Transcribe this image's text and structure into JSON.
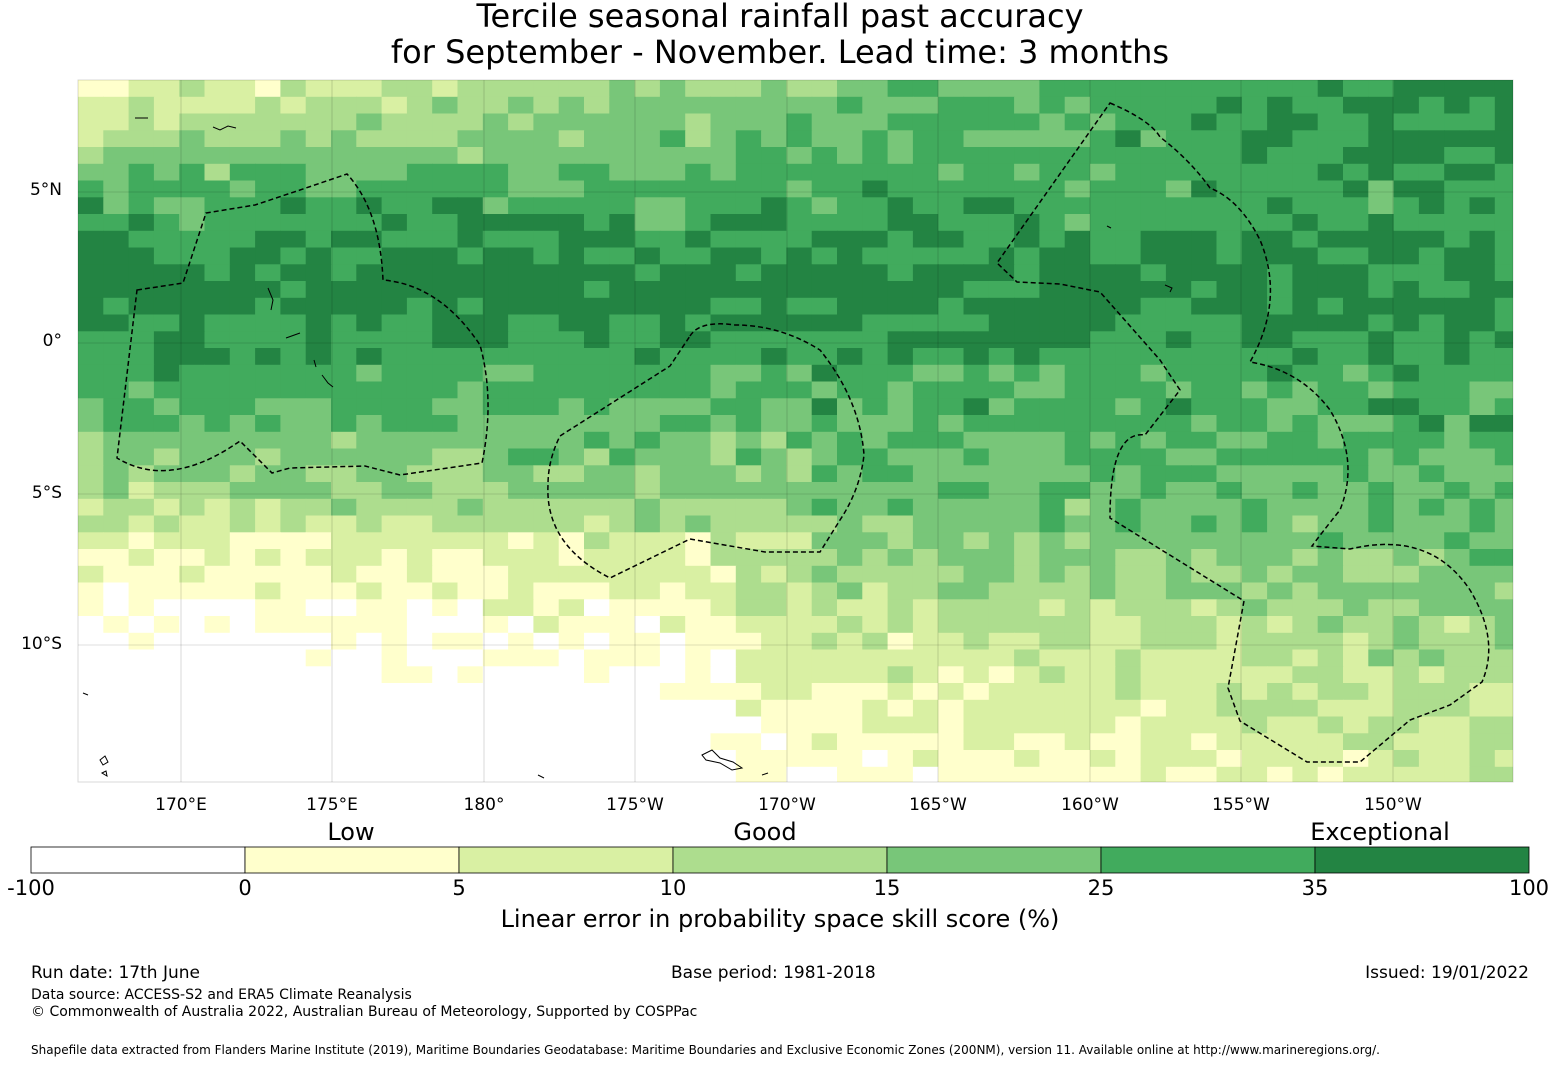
{
  "title": {
    "line1": "Tercile seasonal rainfall past accuracy",
    "line2": "for September - November. Lead time: 3 months"
  },
  "map": {
    "lat_labels": [
      "5°N",
      "0°",
      "5°S",
      "10°S"
    ],
    "lon_labels": [
      "170°E",
      "175°E",
      "180°",
      "175°W",
      "170°W",
      "165°W",
      "160°W",
      "155°W",
      "150°W"
    ],
    "colors": {
      "c0": "#ffffff",
      "c1": "#ffffcc",
      "c2": "#d9f0a3",
      "c3": "#addd8e",
      "c4": "#78c679",
      "c5": "#41ab5d",
      "c6": "#238443"
    }
  },
  "colorbar": {
    "categories": [
      "Low",
      "Good",
      "Exceptional"
    ],
    "ticks": [
      "-100",
      "0",
      "5",
      "10",
      "15",
      "25",
      "35",
      "100"
    ],
    "label": "Linear error in probability space skill score (%)"
  },
  "footer": {
    "run_date": "Run date: 17th June",
    "base_period": "Base period: 1981-2018",
    "issued": "Issued: 19/01/2022",
    "data_source": "Data source: ACCESS-S2 and ERA5 Climate Reanalysis",
    "copyright": "© Commonwealth of Australia 2022, Australian Bureau of Meteorology, Supported by COSPPac",
    "shapefile": "Shapefile data extracted from Flanders Marine Institute (2019), Maritime Boundaries Geodatabase: Maritime Boundaries and Exclusive Economic Zones (200NM), version 11. Available online at http://www.marineregions.org/."
  }
}
